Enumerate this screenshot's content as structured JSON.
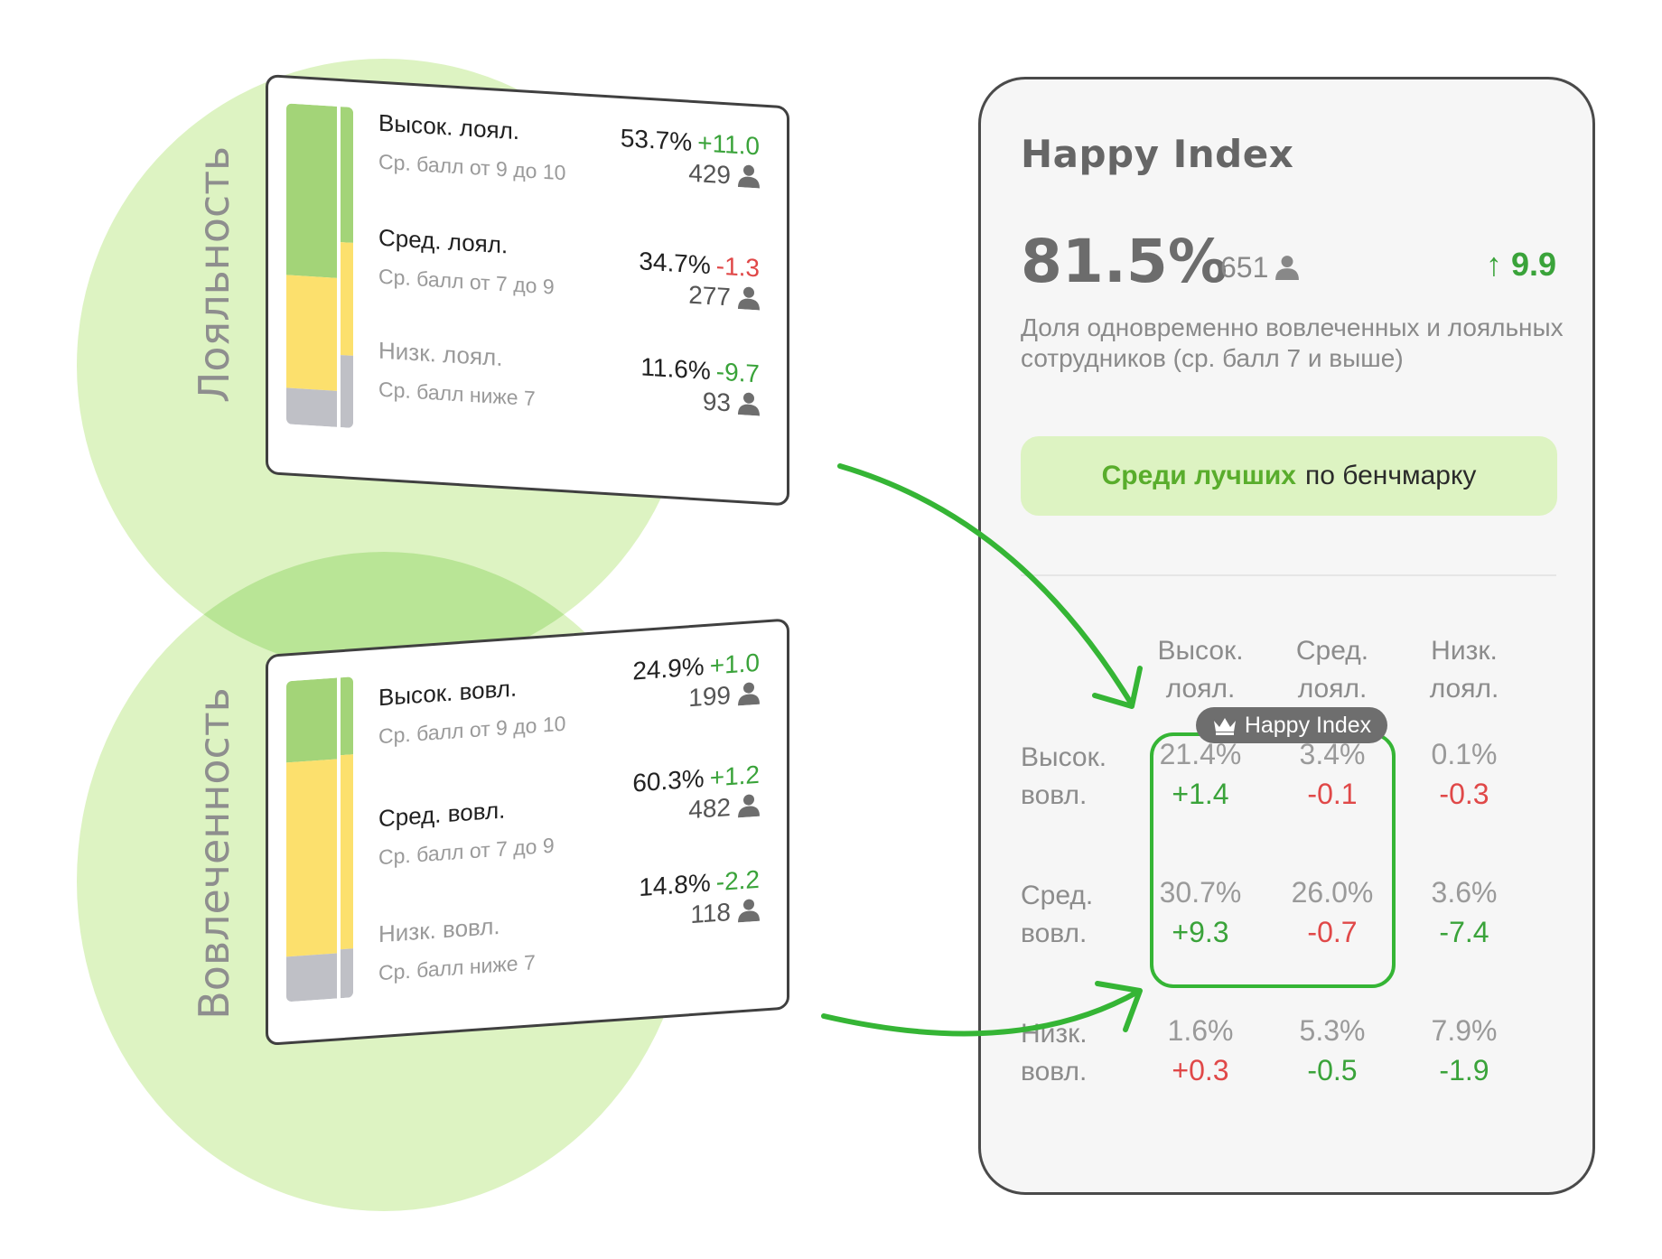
{
  "loyalty_label": "Лояльность",
  "engagement_label": "Вовлеченность",
  "loyalty_card": {
    "rows": [
      {
        "name": "Высок. лоял.",
        "sub": "Ср. балл от 9 до 10",
        "pct": "53.7%",
        "delta": "+11.0",
        "count": "429"
      },
      {
        "name": "Сред. лоял.",
        "sub": "Ср. балл от 7 до 9",
        "pct": "34.7%",
        "delta": "-1.3",
        "count": "277"
      },
      {
        "name": "Низк. лоял.",
        "sub": "Ср. балл ниже 7",
        "pct": "11.6%",
        "delta": "-9.7",
        "count": "93"
      }
    ]
  },
  "engagement_card": {
    "rows": [
      {
        "name": "Высок. вовл.",
        "sub": "Ср. балл от 9 до 10",
        "pct": "24.9%",
        "delta": "+1.0",
        "count": "199"
      },
      {
        "name": "Сред. вовл.",
        "sub": "Ср. балл от 7 до 9",
        "pct": "60.3%",
        "delta": "+1.2",
        "count": "482"
      },
      {
        "name": "Низк. вовл.",
        "sub": "Ср. балл ниже 7",
        "pct": "14.8%",
        "delta": "-2.2",
        "count": "118"
      }
    ]
  },
  "panel": {
    "title": "Happy Index",
    "value": "81.5%",
    "count": "651",
    "delta": "9.9",
    "description": "Доля одновременно вовлеченных и лояльных сотрудников (ср. балл 7 и выше)",
    "benchmark_strong": "Среди лучших",
    "benchmark_rest": "по бенчмарку",
    "badge": "Happy Index",
    "columns": [
      "Высок. лоял.",
      "Сред. лоял.",
      "Низк. лоял."
    ],
    "rows": [
      {
        "label": "Высок. вовл.",
        "cells": [
          {
            "value": "21.4%",
            "delta": "+1.4"
          },
          {
            "value": "3.4%",
            "delta": "-0.1"
          },
          {
            "value": "0.1%",
            "delta": "-0.3"
          }
        ]
      },
      {
        "label": "Сред. вовл.",
        "cells": [
          {
            "value": "30.7%",
            "delta": "+9.3"
          },
          {
            "value": "26.0%",
            "delta": "-0.7"
          },
          {
            "value": "3.6%",
            "delta": "-7.4"
          }
        ]
      },
      {
        "label": "Низк. вовл.",
        "cells": [
          {
            "value": "1.6%",
            "delta": "+0.3"
          },
          {
            "value": "5.3%",
            "delta": "-0.5"
          },
          {
            "value": "7.9%",
            "delta": "-1.9"
          }
        ]
      }
    ]
  },
  "colors": {
    "positive": "#3aa33a",
    "negative": "#e04848",
    "accent_green": "#35b535",
    "high": "#a3d478",
    "mid": "#fce06d",
    "low": "#bfc0c6"
  }
}
